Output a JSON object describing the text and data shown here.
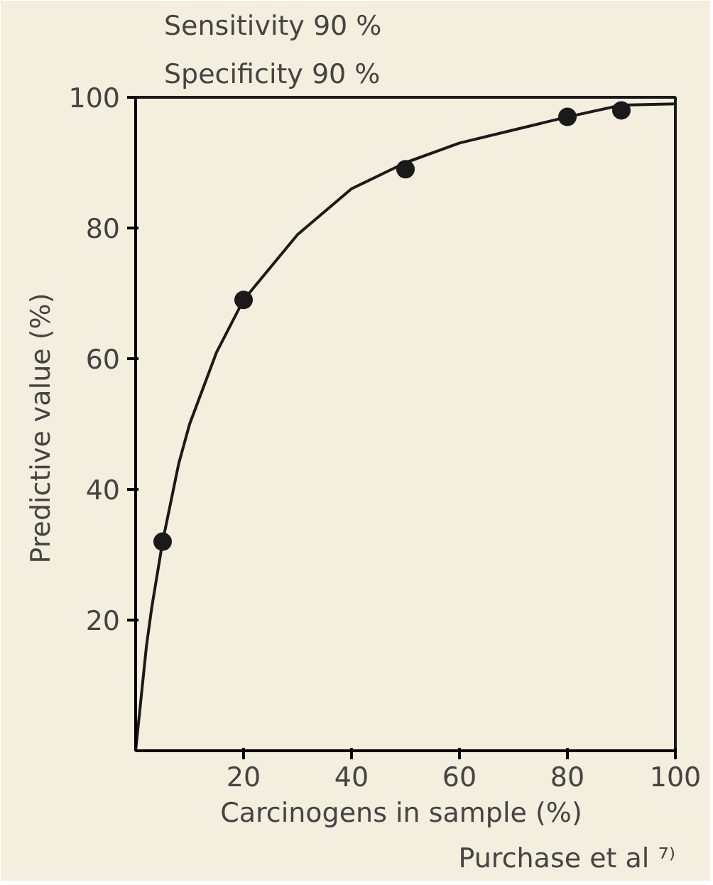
{
  "chart_data": {
    "type": "scatter",
    "title": "Sensitivity   90 %",
    "subtitle": "Specificity   90 %",
    "xlabel": "Carcinogens in sample  (%)",
    "ylabel": "Predictive value  (%)",
    "annotations": [
      "Purchase et al ⁷⁾"
    ],
    "xlim": [
      0,
      100
    ],
    "ylim": [
      0,
      100
    ],
    "xticks": [
      20,
      40,
      60,
      80,
      100
    ],
    "yticks": [
      20,
      40,
      60,
      80,
      100
    ],
    "grid": false,
    "marker": "circle",
    "series": [
      {
        "type": "line",
        "color": "#1a1a1a",
        "x": [
          0,
          1,
          2,
          3,
          5,
          8,
          10,
          15,
          20,
          30,
          40,
          50,
          60,
          70,
          80,
          90,
          100
        ],
        "values": [
          0,
          8,
          16,
          22,
          32,
          44,
          50,
          61,
          69,
          79,
          86,
          90,
          93,
          95,
          97,
          98.8,
          99
        ],
        "line_style": "solid",
        "marker": "none"
      },
      {
        "color": "#1a1a1a",
        "x": [
          5,
          20,
          50,
          80,
          90
        ],
        "values": [
          32,
          69,
          89,
          97,
          98
        ]
      }
    ]
  }
}
